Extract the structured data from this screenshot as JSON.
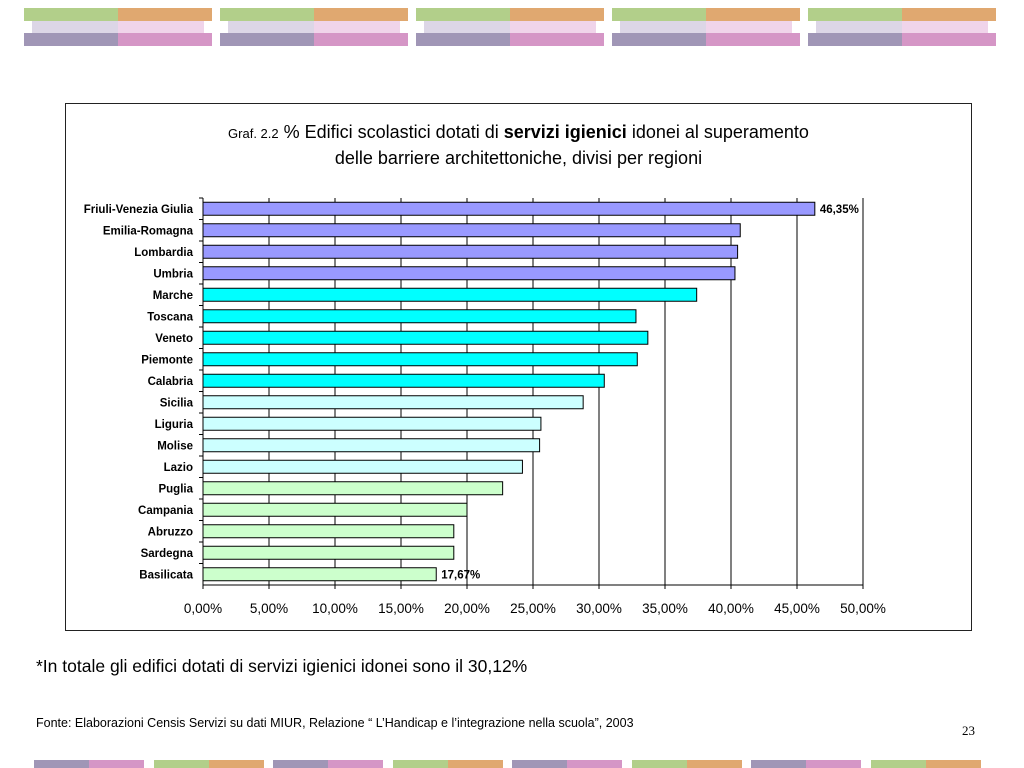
{
  "header_tiles": 5,
  "footer_tiles": 8,
  "palette": {
    "green": "#b2cf8a",
    "orange": "#e0a870",
    "purple": "#a096b6",
    "pink": "#d596c6",
    "lightpurple": "#dcd6e6",
    "lightpink": "#f0d4ea"
  },
  "title": {
    "prefix": "Graf. 2.2",
    "part1": "% Edifici scolastici dotati di",
    "bold": "servizi igienici",
    "part2": "idonei al superamento",
    "line2": "delle barriere architettoniche, divisi per regioni"
  },
  "chart_data": {
    "type": "bar",
    "orientation": "horizontal",
    "categories": [
      "Friuli-Venezia Giulia",
      "Emilia-Romagna",
      "Lombardia",
      "Umbria",
      "Marche",
      "Toscana",
      "Veneto",
      "Piemonte",
      "Calabria",
      "Sicilia",
      "Liguria",
      "Molise",
      "Lazio",
      "Puglia",
      "Campania",
      "Abruzzo",
      "Sardegna",
      "Basilicata"
    ],
    "values": [
      46.35,
      40.7,
      40.5,
      40.3,
      37.4,
      32.8,
      33.7,
      32.9,
      30.4,
      28.8,
      25.6,
      25.5,
      24.2,
      22.7,
      20.0,
      19.0,
      19.0,
      17.67
    ],
    "bar_colors": [
      "#9999ff",
      "#9999ff",
      "#9999ff",
      "#9999ff",
      "#00ffff",
      "#00ffff",
      "#00ffff",
      "#00ffff",
      "#00ffff",
      "#ccffff",
      "#ccffff",
      "#ccffff",
      "#ccffff",
      "#ccffcc",
      "#ccffcc",
      "#ccffcc",
      "#ccffcc",
      "#ccffcc"
    ],
    "data_labels": [
      "46,35%",
      "",
      "",
      "",
      "",
      "",
      "",
      "",
      "",
      "",
      "",
      "",
      "",
      "",
      "",
      "",
      "",
      "17,67%"
    ],
    "x_ticks": [
      "0,00%",
      "5,00%",
      "10,00%",
      "15,00%",
      "20,00%",
      "25,00%",
      "30,00%",
      "35,00%",
      "40,00%",
      "45,00%",
      "50,00%"
    ],
    "xlim": [
      0,
      50
    ],
    "grid": true
  },
  "note": "*In totale gli edifici dotati di servizi igienici  idonei sono il 30,12%",
  "source": "Fonte: Elaborazioni Censis Servizi su dati MIUR, Relazione “ L’Handicap e l’integrazione nella scuola”, 2003",
  "page_number": "23"
}
